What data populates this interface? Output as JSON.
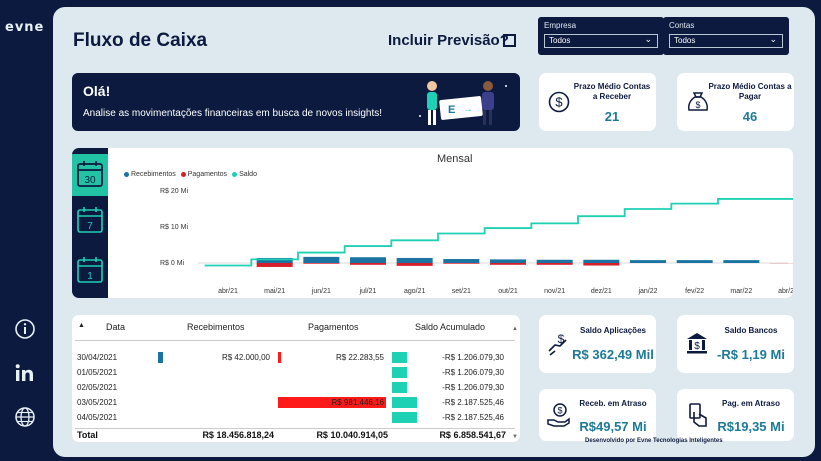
{
  "brand": {
    "logo_text": "evne"
  },
  "sidebar": {
    "icons": [
      "info-icon",
      "linkedin-icon",
      "globe-icon"
    ]
  },
  "header": {
    "title": "Fluxo de Caixa",
    "forecast_label": "Incluir Previsão?"
  },
  "filters": [
    {
      "label": "Empresa",
      "value": "Todos"
    },
    {
      "label": "Contas",
      "value": "Todos"
    }
  ],
  "banner": {
    "greeting": "Olá!",
    "message": "Analise as movimentações financeiras em busca de novos insights!"
  },
  "kpis_top": [
    {
      "title": "Prazo Médio Contas a Receber",
      "value": "21",
      "icon": "dollar-circle-icon"
    },
    {
      "title": "Prazo Médio Contas a Pagar",
      "value": "46",
      "icon": "money-bag-icon"
    }
  ],
  "kpis_bottom": [
    {
      "title": "Saldo Aplicações",
      "value": "R$ 362,49 Mil",
      "icon": "hand-dollar-icon"
    },
    {
      "title": "Saldo Bancos",
      "value": "-R$ 1,19 Mi",
      "icon": "bank-icon"
    },
    {
      "title": "Receb. em Atraso",
      "value": "R$49,57 Mi",
      "icon": "hand-coin-icon"
    },
    {
      "title": "Pag. em Atraso",
      "value": "R$19,35 Mi",
      "icon": "hand-payment-icon"
    }
  ],
  "period_tabs": [
    {
      "label": "30",
      "active": true
    },
    {
      "label": "7",
      "active": false
    },
    {
      "label": "1",
      "active": false
    }
  ],
  "colors": {
    "recebimentos": "#1a73a0",
    "pagamentos": "#d61f2b",
    "saldo": "#1ed0b4",
    "navy": "#0c1a3f"
  },
  "chart_data": {
    "type": "bar",
    "title": "Mensal",
    "categories": [
      "abr/21",
      "mai/21",
      "jun/21",
      "jul/21",
      "ago/21",
      "set/21",
      "out/21",
      "nov/21",
      "dez/21",
      "jan/22",
      "fev/22",
      "mar/22",
      "abr/22"
    ],
    "series": [
      {
        "name": "Recebimentos",
        "values": [
          0.0,
          1.4,
          1.7,
          1.6,
          1.4,
          1.1,
          1.0,
          0.9,
          0.9,
          0.8,
          0.8,
          0.8,
          0.0
        ]
      },
      {
        "name": "Pagamentos",
        "values": [
          0.0,
          -1.1,
          -0.2,
          -0.5,
          -0.8,
          -0.2,
          -0.5,
          -0.5,
          -0.7,
          0.0,
          0.0,
          0.0,
          -0.05
        ]
      },
      {
        "name": "Saldo",
        "values": [
          -0.7,
          1.0,
          2.9,
          4.7,
          6.3,
          8.2,
          9.7,
          11.0,
          13.0,
          15.0,
          16.5,
          17.8,
          17.8
        ]
      }
    ],
    "yticks": [
      "R$ 20 Mi",
      "R$ 10 Mi",
      "R$ 0 Mi"
    ],
    "ylim": [
      -2,
      20
    ],
    "legend_position": "top-left"
  },
  "table": {
    "headers": [
      "Data",
      "Recebimentos",
      "Pagamentos",
      "Saldo Acumulado"
    ],
    "rows": [
      {
        "date": "30/04/2021",
        "rec": "R$ 42.000,00",
        "rec_frac": 0.04,
        "pag": "R$ 22.283,55",
        "pag_frac": 0.03,
        "saldo": "-R$ 1.206.079,30",
        "saldo_frac": 0.13
      },
      {
        "date": "01/05/2021",
        "rec": "",
        "rec_frac": 0,
        "pag": "",
        "pag_frac": 0,
        "saldo": "-R$ 1.206.079,30",
        "saldo_frac": 0.13
      },
      {
        "date": "02/05/2021",
        "rec": "",
        "rec_frac": 0,
        "pag": "",
        "pag_frac": 0,
        "saldo": "-R$ 1.206.079,30",
        "saldo_frac": 0.13
      },
      {
        "date": "03/05/2021",
        "rec": "",
        "rec_frac": 0,
        "pag": "R$ 981.446,16",
        "pag_frac": 1.0,
        "saldo": "-R$ 2.187.525,46",
        "saldo_frac": 0.22
      },
      {
        "date": "04/05/2021",
        "rec": "",
        "rec_frac": 0,
        "pag": "",
        "pag_frac": 0,
        "saldo": "-R$ 2.187.525,46",
        "saldo_frac": 0.22
      }
    ],
    "total": {
      "label": "Total",
      "rec": "R$ 18.456.818,24",
      "pag": "R$ 10.040.914,05",
      "saldo": "R$ 6.858.541,67"
    }
  },
  "footer": "Desenvolvido por Evne Tecnologias Inteligentes"
}
